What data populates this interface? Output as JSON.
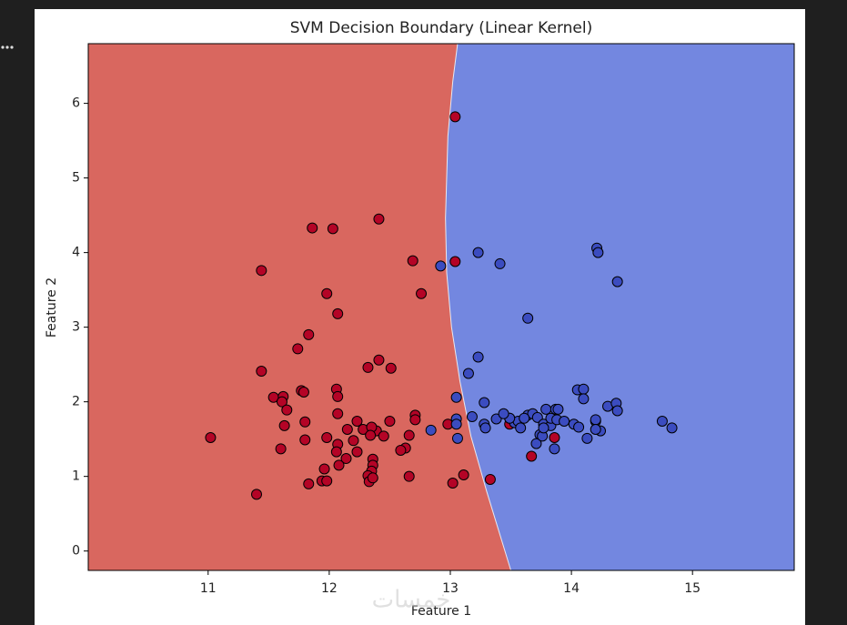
{
  "chart_data": {
    "type": "scatter",
    "title": "SVM Decision Boundary (Linear Kernel)",
    "x_label": "Feature 1",
    "y_label": "Feature 2",
    "xlim": [
      10.01,
      15.84
    ],
    "ylim": [
      -0.26,
      6.8
    ],
    "xticks": [
      11,
      12,
      13,
      14,
      15
    ],
    "yticks": [
      0,
      1,
      2,
      3,
      4,
      5,
      6
    ],
    "regions": [
      {
        "color": "#d9675f"
      },
      {
        "color": "#7387e0"
      }
    ],
    "boundary": {
      "x": [
        13.06,
        13.02,
        12.98,
        12.96,
        12.97,
        13.01,
        13.08,
        13.17,
        13.3,
        13.5
      ],
      "y": [
        6.8,
        6.29,
        5.56,
        4.46,
        3.73,
        3.0,
        2.27,
        1.54,
        0.8,
        -0.26
      ]
    },
    "series": [
      {
        "color": "#b40426",
        "x": [
          13.04,
          11.86,
          12.03,
          12.41,
          11.44,
          12.69,
          13.04,
          11.98,
          12.76,
          12.07,
          11.74,
          11.83,
          12.41,
          12.32,
          12.51,
          11.44,
          11.77,
          11.79,
          12.06,
          12.07,
          11.54,
          11.62,
          11.61,
          11.65,
          12.07,
          11.8,
          12.71,
          12.71,
          11.63,
          12.15,
          12.23,
          12.28,
          12.39,
          12.35,
          12.5,
          12.45,
          12.34,
          11.02,
          11.98,
          11.8,
          12.07,
          12.06,
          11.6,
          12.2,
          12.66,
          12.63,
          12.59,
          12.23,
          12.14,
          12.36,
          12.36,
          11.96,
          12.35,
          12.08,
          12.32,
          12.33,
          12.36,
          11.94,
          11.98,
          12.66,
          11.83,
          11.4,
          13.11,
          13.33,
          13.02,
          12.98,
          13.49,
          13.67,
          13.86
        ],
        "values": [
          5.82,
          4.33,
          4.32,
          4.45,
          3.76,
          3.89,
          3.88,
          3.45,
          3.45,
          3.18,
          2.71,
          2.9,
          2.56,
          2.46,
          2.45,
          2.41,
          2.15,
          2.13,
          2.17,
          2.07,
          2.06,
          2.07,
          2.0,
          1.89,
          1.84,
          1.73,
          1.82,
          1.76,
          1.68,
          1.63,
          1.74,
          1.63,
          1.61,
          1.66,
          1.74,
          1.54,
          1.55,
          1.52,
          1.52,
          1.49,
          1.43,
          1.33,
          1.37,
          1.48,
          1.55,
          1.38,
          1.35,
          1.33,
          1.24,
          1.23,
          1.15,
          1.1,
          1.07,
          1.15,
          1.01,
          0.93,
          0.98,
          0.94,
          0.94,
          1.0,
          0.9,
          0.76,
          1.02,
          0.96,
          0.91,
          1.7,
          1.7,
          1.27,
          1.52
        ]
      },
      {
        "color": "#3b4cc0",
        "x": [
          12.92,
          13.23,
          13.41,
          14.21,
          14.22,
          14.38,
          13.64,
          13.23,
          13.15,
          13.05,
          13.05,
          13.05,
          12.84,
          13.06,
          13.18,
          13.28,
          13.28,
          13.29,
          13.38,
          13.49,
          13.53,
          13.56,
          13.58,
          13.64,
          13.68,
          13.72,
          13.79,
          13.77,
          13.74,
          13.83,
          13.87,
          13.83,
          13.88,
          13.94,
          13.89,
          14.02,
          14.06,
          14.05,
          14.1,
          14.1,
          14.13,
          14.2,
          14.24,
          14.2,
          14.3,
          14.37,
          14.38,
          14.2,
          14.75,
          14.83,
          13.71,
          13.76,
          13.86,
          13.77,
          13.61,
          13.49,
          13.44
        ],
        "values": [
          3.82,
          4.0,
          3.85,
          4.06,
          4.0,
          3.61,
          3.12,
          2.6,
          2.38,
          2.06,
          1.77,
          1.7,
          1.62,
          1.51,
          1.8,
          1.99,
          1.7,
          1.65,
          1.77,
          1.78,
          1.72,
          1.74,
          1.65,
          1.82,
          1.84,
          1.79,
          1.9,
          1.7,
          1.56,
          1.68,
          1.9,
          1.78,
          1.76,
          1.74,
          1.9,
          1.7,
          1.66,
          2.16,
          2.17,
          2.04,
          1.51,
          1.74,
          1.61,
          1.76,
          1.94,
          1.98,
          1.88,
          1.63,
          1.74,
          1.65,
          1.44,
          1.54,
          1.37,
          1.65,
          1.78,
          1.78,
          1.84
        ]
      }
    ]
  },
  "watermark": "خمسات"
}
